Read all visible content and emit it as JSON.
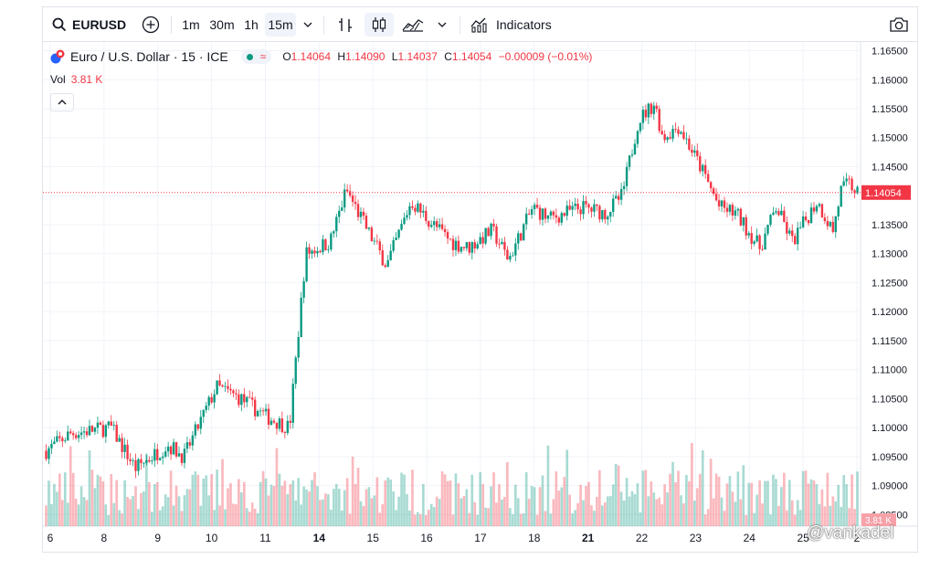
{
  "toolbar": {
    "symbol": "EURUSD",
    "intervals": [
      {
        "label": "1m",
        "active": false
      },
      {
        "label": "30m",
        "active": false
      },
      {
        "label": "1h",
        "active": false
      },
      {
        "label": "15m",
        "active": true
      }
    ],
    "indicators_label": "Indicators",
    "icons": [
      "search-icon",
      "add-symbol-icon",
      "chevron-down-icon",
      "bar-chart-icon",
      "candlestick-icon",
      "area-chart-icon",
      "chevron-down-icon",
      "indicators-icon",
      "camera-icon"
    ]
  },
  "legend": {
    "title": "Euro / U.S. Dollar · 15 · ICE",
    "open_label": "O",
    "open": "1.14064",
    "high_label": "H",
    "high": "1.14090",
    "low_label": "L",
    "low": "1.14037",
    "close_label": "C",
    "close": "1.14054",
    "change": "−0.00009 (−0.01%)",
    "vol_label": "Vol",
    "vol_value": "3.81 K",
    "collapse_icon": "chevron-up-icon"
  },
  "colors": {
    "up": "#089981",
    "down": "#f23645",
    "grid": "#f0f3fa",
    "price_line": "#f23645"
  },
  "chart_data": {
    "type": "candlestick",
    "x_tick_labels": [
      "6",
      "8",
      "9",
      "10",
      "11",
      "14",
      "15",
      "16",
      "17",
      "18",
      "21",
      "22",
      "23",
      "24",
      "25",
      "2"
    ],
    "x_tick_bold": [
      false,
      false,
      false,
      false,
      false,
      true,
      false,
      false,
      false,
      false,
      true,
      false,
      false,
      false,
      false,
      false
    ],
    "y_tick_labels": [
      "1.16500",
      "1.16000",
      "1.15500",
      "1.15000",
      "1.14500",
      "1.14000",
      "1.13500",
      "1.13000",
      "1.12500",
      "1.12000",
      "1.11500",
      "1.11000",
      "1.10500",
      "1.10000",
      "1.09500",
      "1.09000",
      "1.08500"
    ],
    "ylim": [
      1.083,
      1.1665
    ],
    "last_price": 1.14054,
    "last_price_label": "1.14054",
    "last_volume_label": "3.81 K",
    "path_x": [
      0,
      3,
      8,
      11,
      15,
      17,
      21,
      24,
      27,
      30,
      32,
      35,
      37,
      40,
      42,
      45,
      47,
      50,
      52,
      55,
      57,
      60,
      62,
      64,
      66,
      69,
      71,
      73,
      75,
      76,
      78,
      81,
      83,
      85,
      88,
      90,
      92,
      95,
      97,
      98,
      99,
      100
    ],
    "path_y": [
      1.096,
      1.099,
      1.1,
      1.093,
      1.097,
      1.095,
      1.107,
      1.105,
      1.102,
      1.1,
      1.13,
      1.132,
      1.141,
      1.133,
      1.128,
      1.139,
      1.136,
      1.132,
      1.131,
      1.134,
      1.129,
      1.138,
      1.136,
      1.137,
      1.138,
      1.137,
      1.14,
      1.153,
      1.156,
      1.15,
      1.152,
      1.144,
      1.138,
      1.137,
      1.131,
      1.138,
      1.132,
      1.139,
      1.134,
      1.141,
      1.142,
      1.1405
    ]
  },
  "watermark": "@vankadel"
}
